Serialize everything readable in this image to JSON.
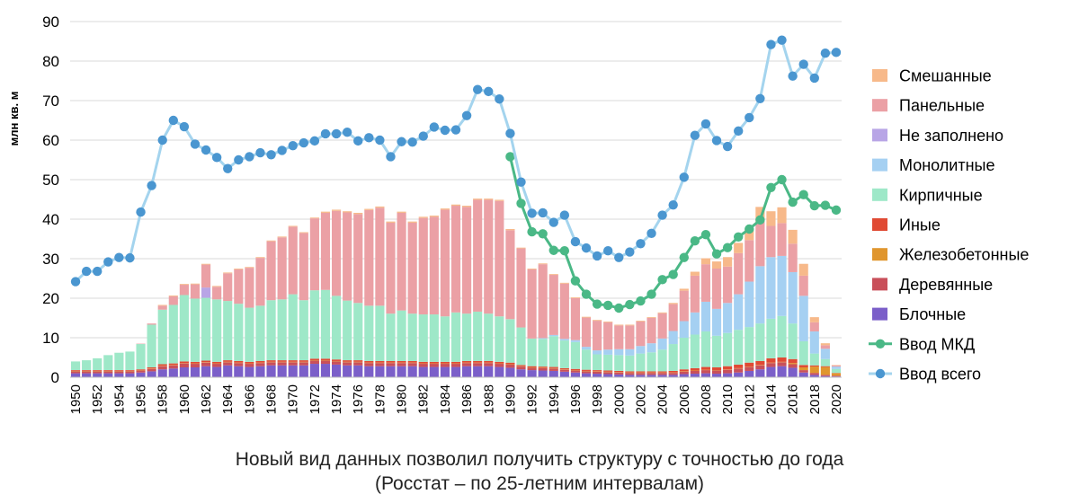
{
  "caption": {
    "line1": "Новый вид данных позволил получить структуру с точностью до года",
    "line2": "(Росстат – по 25-летним интервалам)"
  },
  "chart_data": {
    "type": "bar",
    "stacked": true,
    "ylabel": "млн кв. м",
    "ylim": [
      0,
      90
    ],
    "yticks": [
      0,
      10,
      20,
      30,
      40,
      50,
      60,
      70,
      80,
      90
    ],
    "grid": true,
    "legend_position": "right",
    "x": [
      1950,
      1951,
      1952,
      1953,
      1954,
      1955,
      1956,
      1957,
      1958,
      1959,
      1960,
      1961,
      1962,
      1963,
      1964,
      1965,
      1966,
      1967,
      1968,
      1969,
      1970,
      1971,
      1972,
      1973,
      1974,
      1975,
      1976,
      1977,
      1978,
      1979,
      1980,
      1981,
      1982,
      1983,
      1984,
      1985,
      1986,
      1987,
      1988,
      1989,
      1990,
      1991,
      1992,
      1993,
      1994,
      1995,
      1996,
      1997,
      1998,
      1999,
      2000,
      2001,
      2002,
      2003,
      2004,
      2005,
      2006,
      2007,
      2008,
      2009,
      2010,
      2011,
      2012,
      2013,
      2014,
      2015,
      2016,
      2017,
      2018,
      2019,
      2020
    ],
    "xtick_labels": [
      "1950",
      "1952",
      "1954",
      "1956",
      "1958",
      "1960",
      "1962",
      "1964",
      "1966",
      "1968",
      "1970",
      "1972",
      "1974",
      "1976",
      "1978",
      "1980",
      "1982",
      "1984",
      "1986",
      "1988",
      "1990",
      "1992",
      "1994",
      "1996",
      "1998",
      "2000",
      "2002",
      "2004",
      "2006",
      "2008",
      "2010",
      "2012",
      "2014",
      "2016",
      "2018",
      "2020"
    ],
    "bar_series": [
      {
        "name": "Блочные",
        "color": "#7b5fc9",
        "values": [
          1.0,
          1.0,
          1.0,
          1.0,
          1.0,
          1.0,
          1.2,
          1.5,
          2.0,
          2.2,
          2.5,
          2.5,
          2.8,
          2.6,
          3.0,
          2.8,
          2.6,
          2.8,
          3.0,
          3.0,
          3.0,
          3.0,
          3.4,
          3.4,
          3.2,
          3.0,
          3.0,
          2.8,
          2.8,
          2.8,
          2.8,
          2.8,
          2.6,
          2.6,
          2.6,
          2.6,
          2.8,
          2.8,
          2.8,
          2.6,
          2.4,
          2.0,
          1.8,
          1.7,
          1.6,
          1.4,
          1.2,
          1.0,
          0.9,
          0.8,
          0.7,
          0.6,
          0.6,
          0.6,
          0.6,
          0.6,
          0.8,
          0.9,
          1.0,
          0.9,
          1.0,
          1.2,
          1.6,
          2.0,
          2.6,
          2.8,
          2.4,
          1.2,
          0.6,
          0.3,
          0.2
        ]
      },
      {
        "name": "Деревянные",
        "color": "#c9505a",
        "values": [
          0.5,
          0.5,
          0.5,
          0.5,
          0.5,
          0.5,
          0.5,
          0.6,
          0.8,
          0.8,
          1.0,
          0.9,
          0.9,
          0.8,
          0.8,
          0.8,
          0.8,
          0.8,
          0.8,
          0.8,
          0.8,
          0.8,
          0.8,
          0.8,
          0.8,
          0.8,
          0.8,
          0.8,
          0.8,
          0.8,
          0.8,
          0.8,
          0.8,
          0.8,
          0.8,
          0.8,
          0.8,
          0.8,
          0.8,
          0.8,
          0.8,
          0.7,
          0.6,
          0.6,
          0.6,
          0.5,
          0.5,
          0.5,
          0.5,
          0.5,
          0.5,
          0.5,
          0.5,
          0.5,
          0.5,
          0.5,
          0.6,
          0.7,
          0.8,
          0.8,
          0.9,
          1.0,
          1.0,
          1.0,
          1.0,
          1.0,
          0.9,
          0.6,
          0.5,
          0.3,
          0.2
        ]
      },
      {
        "name": "Железобетонные",
        "color": "#e0962e",
        "values": [
          0.1,
          0.1,
          0.1,
          0.1,
          0.1,
          0.1,
          0.1,
          0.1,
          0.1,
          0.1,
          0.1,
          0.1,
          0.1,
          0.1,
          0.1,
          0.1,
          0.1,
          0.1,
          0.1,
          0.1,
          0.1,
          0.1,
          0.1,
          0.1,
          0.1,
          0.1,
          0.1,
          0.1,
          0.1,
          0.1,
          0.1,
          0.1,
          0.1,
          0.1,
          0.1,
          0.1,
          0.1,
          0.1,
          0.1,
          0.1,
          0.1,
          0.1,
          0.1,
          0.1,
          0.1,
          0.1,
          0.1,
          0.1,
          0.1,
          0.1,
          0.1,
          0.1,
          0.1,
          0.1,
          0.1,
          0.1,
          0.1,
          0.1,
          0.1,
          0.1,
          0.1,
          0.1,
          0.1,
          0.1,
          0.1,
          0.1,
          0.3,
          0.7,
          1.6,
          2.0,
          0.6
        ]
      },
      {
        "name": "Иные",
        "color": "#e04a34",
        "values": [
          0.2,
          0.2,
          0.2,
          0.2,
          0.2,
          0.2,
          0.2,
          0.3,
          0.4,
          0.4,
          0.4,
          0.4,
          0.4,
          0.4,
          0.4,
          0.4,
          0.4,
          0.4,
          0.4,
          0.4,
          0.4,
          0.4,
          0.4,
          0.4,
          0.4,
          0.4,
          0.4,
          0.4,
          0.4,
          0.4,
          0.4,
          0.4,
          0.4,
          0.4,
          0.4,
          0.4,
          0.4,
          0.4,
          0.4,
          0.4,
          0.4,
          0.3,
          0.3,
          0.3,
          0.3,
          0.3,
          0.3,
          0.3,
          0.3,
          0.3,
          0.3,
          0.3,
          0.3,
          0.3,
          0.3,
          0.4,
          0.5,
          0.6,
          0.7,
          0.7,
          0.8,
          0.9,
          1.0,
          1.0,
          1.1,
          1.1,
          1.0,
          0.6,
          0.3,
          0.2,
          0.1
        ]
      },
      {
        "name": "Кирпичные",
        "color": "#9ee8c8",
        "values": [
          2.2,
          2.5,
          3.0,
          3.8,
          4.4,
          4.7,
          6.4,
          10.8,
          13.8,
          14.8,
          16.8,
          16.0,
          15.9,
          15.8,
          15.0,
          14.5,
          13.7,
          14.0,
          15.2,
          15.4,
          16.7,
          15.2,
          17.3,
          17.4,
          16.1,
          15.1,
          14.5,
          14.0,
          14.0,
          12.0,
          12.8,
          12.0,
          12.0,
          12.0,
          11.5,
          12.5,
          12.0,
          12.5,
          12.0,
          11.5,
          11.0,
          9.5,
          7.0,
          7.0,
          7.8,
          7.0,
          6.8,
          5.1,
          4.0,
          4.0,
          4.0,
          4.0,
          4.5,
          4.8,
          5.5,
          6.8,
          8.0,
          8.5,
          9.0,
          8.0,
          8.4,
          8.8,
          9.0,
          9.5,
          10.0,
          10.5,
          9.0,
          6.0,
          3.0,
          1.8,
          1.0
        ]
      },
      {
        "name": "Монолитные",
        "color": "#a5d0f2",
        "values": [
          0,
          0,
          0,
          0,
          0,
          0,
          0,
          0,
          0,
          0,
          0,
          0,
          0,
          0,
          0,
          0,
          0,
          0,
          0,
          0,
          0,
          0,
          0,
          0,
          0,
          0,
          0,
          0,
          0,
          0,
          0,
          0,
          0,
          0,
          0,
          0,
          0,
          0,
          0,
          0,
          0,
          0,
          0,
          0.2,
          0.3,
          0.4,
          0.5,
          0.7,
          1.0,
          1.3,
          1.5,
          1.6,
          1.9,
          2.3,
          2.8,
          3.3,
          4.2,
          5.6,
          7.5,
          6.8,
          7.6,
          9.0,
          11.5,
          14.5,
          15.6,
          15.2,
          13.0,
          11.5,
          5.6,
          2.6,
          0.6
        ]
      },
      {
        "name": "Не заполнено",
        "color": "#b8a5e6",
        "values": [
          0,
          0,
          0,
          0,
          0,
          0,
          0,
          0,
          0,
          0,
          0,
          0,
          2.6,
          0,
          0,
          0,
          0,
          0,
          0,
          0,
          0,
          0,
          0,
          0,
          0,
          0,
          0,
          0,
          0,
          0,
          0,
          0,
          0,
          0,
          0,
          0,
          0,
          0,
          0,
          0,
          0,
          0,
          0,
          0,
          0,
          0,
          0,
          0,
          0,
          0,
          0,
          0,
          0,
          0,
          0,
          0,
          0,
          0,
          0,
          0,
          0,
          0,
          0,
          0,
          0,
          0,
          0,
          0,
          0,
          0,
          0
        ]
      },
      {
        "name": "Панельные",
        "color": "#eba0a5",
        "values": [
          0,
          0,
          0,
          0,
          0,
          0,
          0.1,
          0.3,
          1.0,
          2.2,
          2.6,
          3.6,
          5.8,
          3.2,
          7.0,
          8.7,
          10.1,
          12.1,
          14.9,
          15.7,
          17.1,
          17.0,
          18.2,
          19.5,
          21.5,
          22.3,
          22.5,
          24.2,
          24.8,
          23.0,
          24.7,
          23.0,
          24.4,
          24.7,
          27.0,
          27.0,
          27.0,
          28.3,
          28.8,
          29.2,
          22.5,
          20.0,
          17.5,
          18.7,
          15.2,
          14.0,
          10.6,
          7.4,
          7.5,
          6.9,
          6.0,
          6.0,
          6.2,
          6.4,
          6.4,
          6.8,
          7.7,
          9.3,
          9.5,
          10.2,
          9.2,
          10.4,
          10.5,
          11.2,
          7.9,
          8.3,
          7.2,
          5.1,
          2.3,
          0.9,
          0.3
        ]
      },
      {
        "name": "Смешанные",
        "color": "#f7b98a",
        "values": [
          0,
          0,
          0,
          0,
          0,
          0,
          0,
          0,
          0.2,
          0.2,
          0.2,
          0.2,
          0.2,
          0.2,
          0.2,
          0.2,
          0.2,
          0.2,
          0.2,
          0.2,
          0.2,
          0.2,
          0.2,
          0.3,
          0.3,
          0.3,
          0.3,
          0.3,
          0.3,
          0.3,
          0.3,
          0.3,
          0.3,
          0.3,
          0.3,
          0.3,
          0.3,
          0.3,
          0.3,
          0.3,
          0.3,
          0.2,
          0.2,
          0.2,
          0.2,
          0.2,
          0.2,
          0.2,
          0.2,
          0.2,
          0.2,
          0.2,
          0.2,
          0.2,
          0.2,
          0.3,
          0.5,
          1.0,
          1.5,
          1.8,
          2.4,
          2.6,
          2.9,
          3.8,
          3.7,
          4.0,
          3.5,
          3.0,
          1.3,
          0.5,
          0.1
        ]
      }
    ],
    "line_series": [
      {
        "name": "Ввод МКД",
        "color": "#4ab886",
        "x": [
          1990,
          1991,
          1992,
          1993,
          1994,
          1995,
          1996,
          1997,
          1998,
          1999,
          2000,
          2001,
          2002,
          2003,
          2004,
          2005,
          2006,
          2007,
          2008,
          2009,
          2010,
          2011,
          2012,
          2013,
          2014,
          2015,
          2016,
          2017,
          2018,
          2019,
          2020
        ],
        "values": [
          55.8,
          44.0,
          36.8,
          36.3,
          32.1,
          32.0,
          24.4,
          21.0,
          18.5,
          18.2,
          17.5,
          18.4,
          19.3,
          21.0,
          24.7,
          26.0,
          30.3,
          34.5,
          36.1,
          31.2,
          32.8,
          35.5,
          37.5,
          39.8,
          48.0,
          50.0,
          44.3,
          46.2,
          43.4,
          43.5,
          42.3
        ]
      },
      {
        "name": "Ввод всего",
        "color": "#4a96d0",
        "line_color": "#a4d4ee",
        "x": [
          1950,
          1951,
          1952,
          1953,
          1954,
          1955,
          1956,
          1957,
          1958,
          1959,
          1960,
          1961,
          1962,
          1963,
          1964,
          1965,
          1966,
          1967,
          1968,
          1969,
          1970,
          1971,
          1972,
          1973,
          1974,
          1975,
          1976,
          1977,
          1978,
          1979,
          1980,
          1981,
          1982,
          1983,
          1984,
          1985,
          1986,
          1987,
          1988,
          1989,
          1990,
          1991,
          1992,
          1993,
          1994,
          1995,
          1996,
          1997,
          1998,
          1999,
          2000,
          2001,
          2002,
          2003,
          2004,
          2005,
          2006,
          2007,
          2008,
          2009,
          2010,
          2011,
          2012,
          2013,
          2014,
          2015,
          2016,
          2017,
          2018,
          2019,
          2020
        ],
        "values": [
          24.2,
          26.8,
          26.8,
          29.2,
          30.3,
          30.2,
          41.8,
          48.5,
          60.0,
          65.0,
          63.4,
          59.0,
          57.5,
          55.6,
          52.8,
          55.0,
          55.8,
          56.8,
          56.3,
          57.4,
          58.6,
          59.3,
          59.8,
          61.6,
          61.6,
          62.0,
          59.8,
          60.6,
          60.0,
          55.8,
          59.6,
          59.5,
          61.0,
          63.3,
          62.5,
          62.6,
          66.2,
          72.8,
          72.3,
          70.4,
          61.7,
          49.4,
          41.5,
          41.6,
          39.2,
          41.0,
          34.3,
          32.7,
          30.7,
          32.0,
          30.3,
          31.7,
          33.8,
          36.4,
          41.0,
          43.6,
          50.6,
          61.2,
          64.1,
          59.9,
          58.4,
          62.3,
          65.7,
          70.5,
          84.2,
          85.3,
          76.2,
          79.2,
          75.7,
          82.0,
          82.2
        ]
      }
    ],
    "legend": [
      "Смешанные",
      "Панельные",
      "Не заполнено",
      "Монолитные",
      "Кирпичные",
      "Иные",
      "Железобетонные",
      "Деревянные",
      "Блочные",
      "Ввод МКД",
      "Ввод всего"
    ]
  }
}
